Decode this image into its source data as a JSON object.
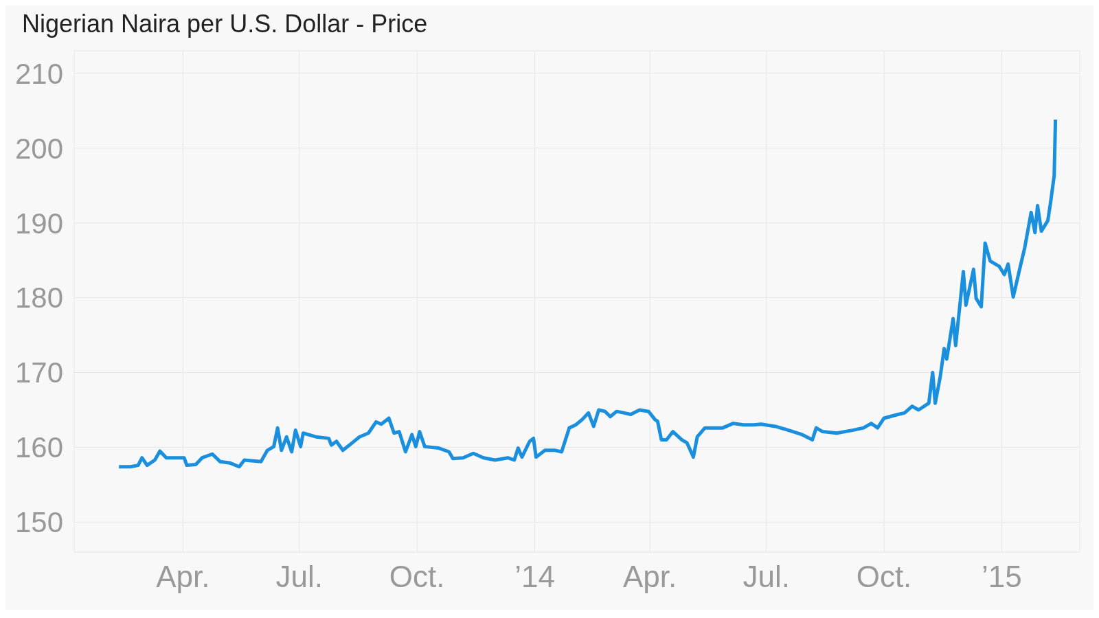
{
  "chart_data": {
    "type": "line",
    "title": "Nigerian Naira per U.S. Dollar - Price",
    "x": [
      "2013-02-10",
      "2013-02-19",
      "2013-02-25",
      "2013-02-28",
      "2013-03-04",
      "2013-03-10",
      "2013-03-14",
      "2013-03-19",
      "2013-03-26",
      "2013-04-02",
      "2013-04-04",
      "2013-04-11",
      "2013-04-16",
      "2013-04-24",
      "2013-04-30",
      "2013-05-08",
      "2013-05-15",
      "2013-05-19",
      "2013-06-01",
      "2013-06-06",
      "2013-06-11",
      "2013-06-14",
      "2013-06-17",
      "2013-06-21",
      "2013-06-25",
      "2013-06-28",
      "2013-07-02",
      "2013-07-04",
      "2013-07-14",
      "2013-07-24",
      "2013-07-26",
      "2013-07-30",
      "2013-08-04",
      "2013-08-12",
      "2013-08-17",
      "2013-08-24",
      "2013-08-30",
      "2013-09-03",
      "2013-09-09",
      "2013-09-13",
      "2013-09-17",
      "2013-09-22",
      "2013-09-27",
      "2013-09-30",
      "2013-10-03",
      "2013-10-07",
      "2013-10-18",
      "2013-10-26",
      "2013-10-29",
      "2013-11-06",
      "2013-11-14",
      "2013-11-22",
      "2013-12-01",
      "2013-12-11",
      "2013-12-16",
      "2013-12-19",
      "2013-12-22",
      "2013-12-28",
      "2013-12-31",
      "2014-01-02",
      "2014-01-09",
      "2014-01-17",
      "2014-01-22",
      "2014-01-28",
      "2014-02-02",
      "2014-02-07",
      "2014-02-12",
      "2014-02-16",
      "2014-02-20",
      "2014-02-25",
      "2014-03-01",
      "2014-03-06",
      "2014-03-12",
      "2014-03-17",
      "2014-03-24",
      "2014-03-31",
      "2014-04-05",
      "2014-04-07",
      "2014-04-10",
      "2014-04-14",
      "2014-04-19",
      "2014-04-26",
      "2014-04-30",
      "2014-05-05",
      "2014-05-08",
      "2014-05-14",
      "2014-05-20",
      "2014-05-28",
      "2014-06-05",
      "2014-06-13",
      "2014-06-21",
      "2014-06-27",
      "2014-07-08",
      "2014-07-18",
      "2014-07-29",
      "2014-08-06",
      "2014-08-09",
      "2014-08-14",
      "2014-08-25",
      "2014-09-07",
      "2014-09-15",
      "2014-09-21",
      "2014-09-26",
      "2014-10-01",
      "2014-10-12",
      "2014-10-17",
      "2014-10-23",
      "2014-10-28",
      "2014-11-05",
      "2014-11-08",
      "2014-11-10",
      "2014-11-14",
      "2014-11-17",
      "2014-11-19",
      "2014-11-24",
      "2014-11-26",
      "2014-12-02",
      "2014-12-04",
      "2014-12-10",
      "2014-12-12",
      "2014-12-16",
      "2014-12-19",
      "2014-12-23",
      "2014-12-30",
      "2015-01-03",
      "2015-01-06",
      "2015-01-10",
      "2015-01-15",
      "2015-01-19",
      "2015-01-24",
      "2015-01-27",
      "2015-01-29",
      "2015-02-01",
      "2015-02-06",
      "2015-02-08",
      "2015-02-11",
      "2015-02-12"
    ],
    "series": [
      {
        "color": "#1a8fdd",
        "values": [
          157.4,
          157.4,
          157.6,
          158.6,
          157.6,
          158.3,
          159.5,
          158.6,
          158.6,
          158.6,
          157.6,
          157.7,
          158.6,
          159.1,
          158.1,
          157.9,
          157.4,
          158.3,
          158.1,
          159.6,
          160.1,
          162.6,
          159.6,
          161.4,
          159.4,
          162.3,
          160.1,
          161.9,
          161.4,
          161.2,
          160.3,
          160.8,
          159.6,
          160.7,
          161.4,
          161.9,
          163.4,
          163.1,
          163.9,
          161.9,
          162.1,
          159.4,
          161.7,
          160.1,
          162.1,
          160.1,
          159.9,
          159.4,
          158.5,
          158.6,
          159.2,
          158.6,
          158.3,
          158.6,
          158.3,
          159.9,
          158.7,
          160.8,
          161.2,
          158.7,
          159.6,
          159.6,
          159.4,
          162.6,
          163.0,
          163.7,
          164.6,
          162.8,
          165.0,
          164.8,
          164.1,
          164.8,
          164.6,
          164.4,
          165.0,
          164.8,
          163.7,
          163.5,
          161.0,
          161.0,
          162.1,
          161.0,
          160.6,
          158.7,
          161.4,
          162.6,
          162.6,
          162.6,
          163.2,
          163.0,
          163.0,
          163.1,
          162.8,
          162.3,
          161.7,
          161.0,
          162.6,
          162.1,
          161.9,
          162.3,
          162.6,
          163.2,
          162.6,
          163.9,
          164.4,
          164.6,
          165.5,
          165.0,
          165.9,
          170.0,
          165.9,
          169.5,
          173.2,
          171.8,
          177.2,
          173.6,
          183.5,
          179.0,
          183.8,
          179.9,
          178.8,
          187.3,
          184.9,
          184.2,
          183.1,
          184.5,
          180.1,
          183.8,
          186.7,
          191.4,
          188.7,
          192.3,
          188.9,
          190.3,
          192.5,
          196.3,
          203.8
        ]
      }
    ],
    "xlim": [
      "2013-01-06",
      "2015-03-03"
    ],
    "xticks": [
      {
        "value": "2013-04-01",
        "label": "Apr."
      },
      {
        "value": "2013-07-01",
        "label": "Jul."
      },
      {
        "value": "2013-10-01",
        "label": "Oct."
      },
      {
        "value": "2014-01-01",
        "label": "’14"
      },
      {
        "value": "2014-04-01",
        "label": "Apr."
      },
      {
        "value": "2014-07-01",
        "label": "Jul."
      },
      {
        "value": "2014-10-01",
        "label": "Oct."
      },
      {
        "value": "2015-01-01",
        "label": "’15"
      }
    ],
    "ylim": [
      146,
      213
    ],
    "yticks": [
      150,
      160,
      170,
      180,
      190,
      200,
      210
    ],
    "grid": true,
    "marker": "none",
    "line_style": "solid"
  }
}
